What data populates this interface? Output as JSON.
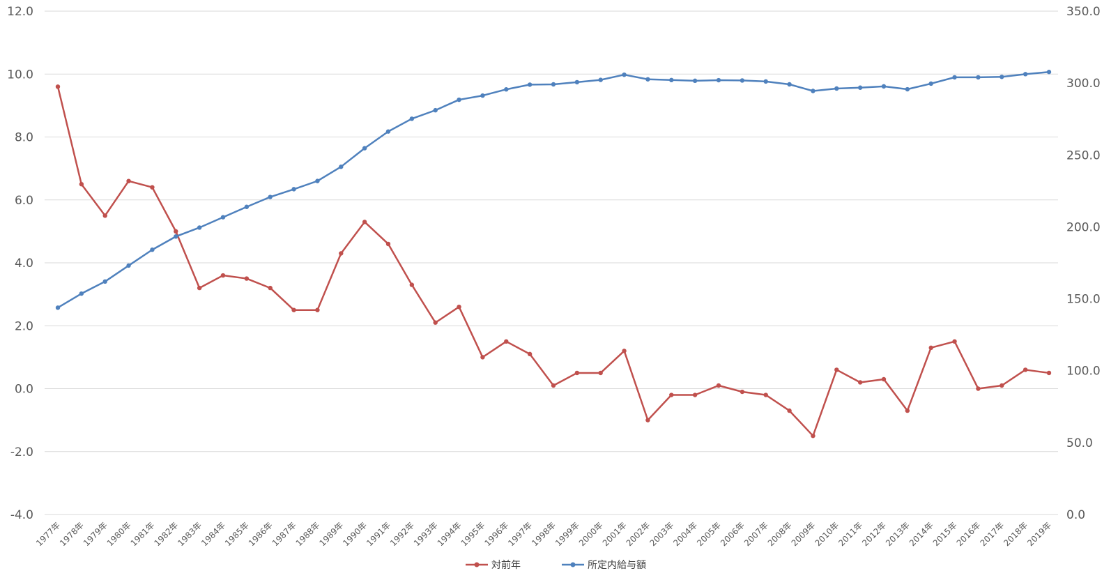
{
  "chart_data": {
    "type": "line",
    "categories": [
      "1977年",
      "1978年",
      "1979年",
      "1980年",
      "1981年",
      "1982年",
      "1983年",
      "1984年",
      "1985年",
      "1986年",
      "1987年",
      "1988年",
      "1989年",
      "1990年",
      "1991年",
      "1992年",
      "1993年",
      "1994年",
      "1995年",
      "1996年",
      "1997年",
      "1998年",
      "1999年",
      "2000年",
      "2001年",
      "2002年",
      "2003年",
      "2004年",
      "2005年",
      "2006年",
      "2007年",
      "2008年",
      "2009年",
      "2010年",
      "2011年",
      "2012年",
      "2013年",
      "2014年",
      "2015年",
      "2016年",
      "2017年",
      "2018年",
      "2019年"
    ],
    "series": [
      {
        "name": "対前年",
        "axis": "left",
        "color": "#C0504D",
        "values": [
          9.6,
          6.5,
          5.5,
          6.6,
          6.4,
          5.0,
          3.2,
          3.6,
          3.5,
          3.2,
          2.5,
          2.5,
          4.3,
          5.3,
          4.6,
          3.3,
          2.1,
          2.6,
          1.0,
          1.5,
          1.1,
          0.1,
          0.5,
          0.5,
          1.2,
          -1.0,
          -0.2,
          -0.2,
          0.1,
          -0.1,
          -0.2,
          -0.7,
          -1.5,
          0.6,
          0.2,
          0.3,
          -0.7,
          1.3,
          1.5,
          0.0,
          0.1,
          0.6,
          0.5
        ]
      },
      {
        "name": "所定内給与額",
        "axis": "right",
        "color": "#4F81BD",
        "values": [
          143.8,
          153.6,
          162.0,
          173.1,
          184.1,
          193.3,
          199.5,
          206.7,
          213.9,
          220.8,
          226.2,
          231.9,
          241.8,
          254.7,
          266.3,
          275.2,
          281.1,
          288.4,
          291.3,
          295.6,
          298.9,
          299.1,
          300.6,
          302.2,
          305.8,
          302.6,
          302.1,
          301.6,
          302.0,
          301.8,
          301.1,
          299.1,
          294.5,
          296.2,
          296.8,
          297.7,
          295.7,
          299.6,
          304.0,
          304.0,
          304.3,
          306.2,
          307.7
        ]
      }
    ],
    "y_left": {
      "min": -4.0,
      "max": 12.0,
      "step": 2.0,
      "ticks": [
        "12.0",
        "10.0",
        "8.0",
        "6.0",
        "4.0",
        "2.0",
        "0.0",
        "-2.0",
        "-4.0"
      ]
    },
    "y_right": {
      "min": 0.0,
      "max": 350.0,
      "step": 50.0,
      "ticks": [
        "350.0",
        "300.0",
        "250.0",
        "200.0",
        "150.0",
        "100.0",
        "50.0",
        "0.0"
      ]
    },
    "grid": true,
    "legend": "bottom"
  }
}
